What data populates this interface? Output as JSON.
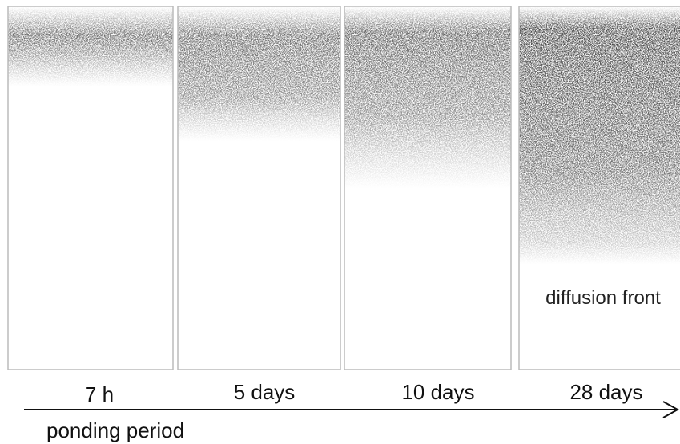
{
  "panels": [
    {
      "label": "7 h"
    },
    {
      "label": "5 days"
    },
    {
      "label": "10 days"
    },
    {
      "label": "28 days"
    }
  ],
  "annotation": "diffusion front",
  "axis_label": "ponding period"
}
